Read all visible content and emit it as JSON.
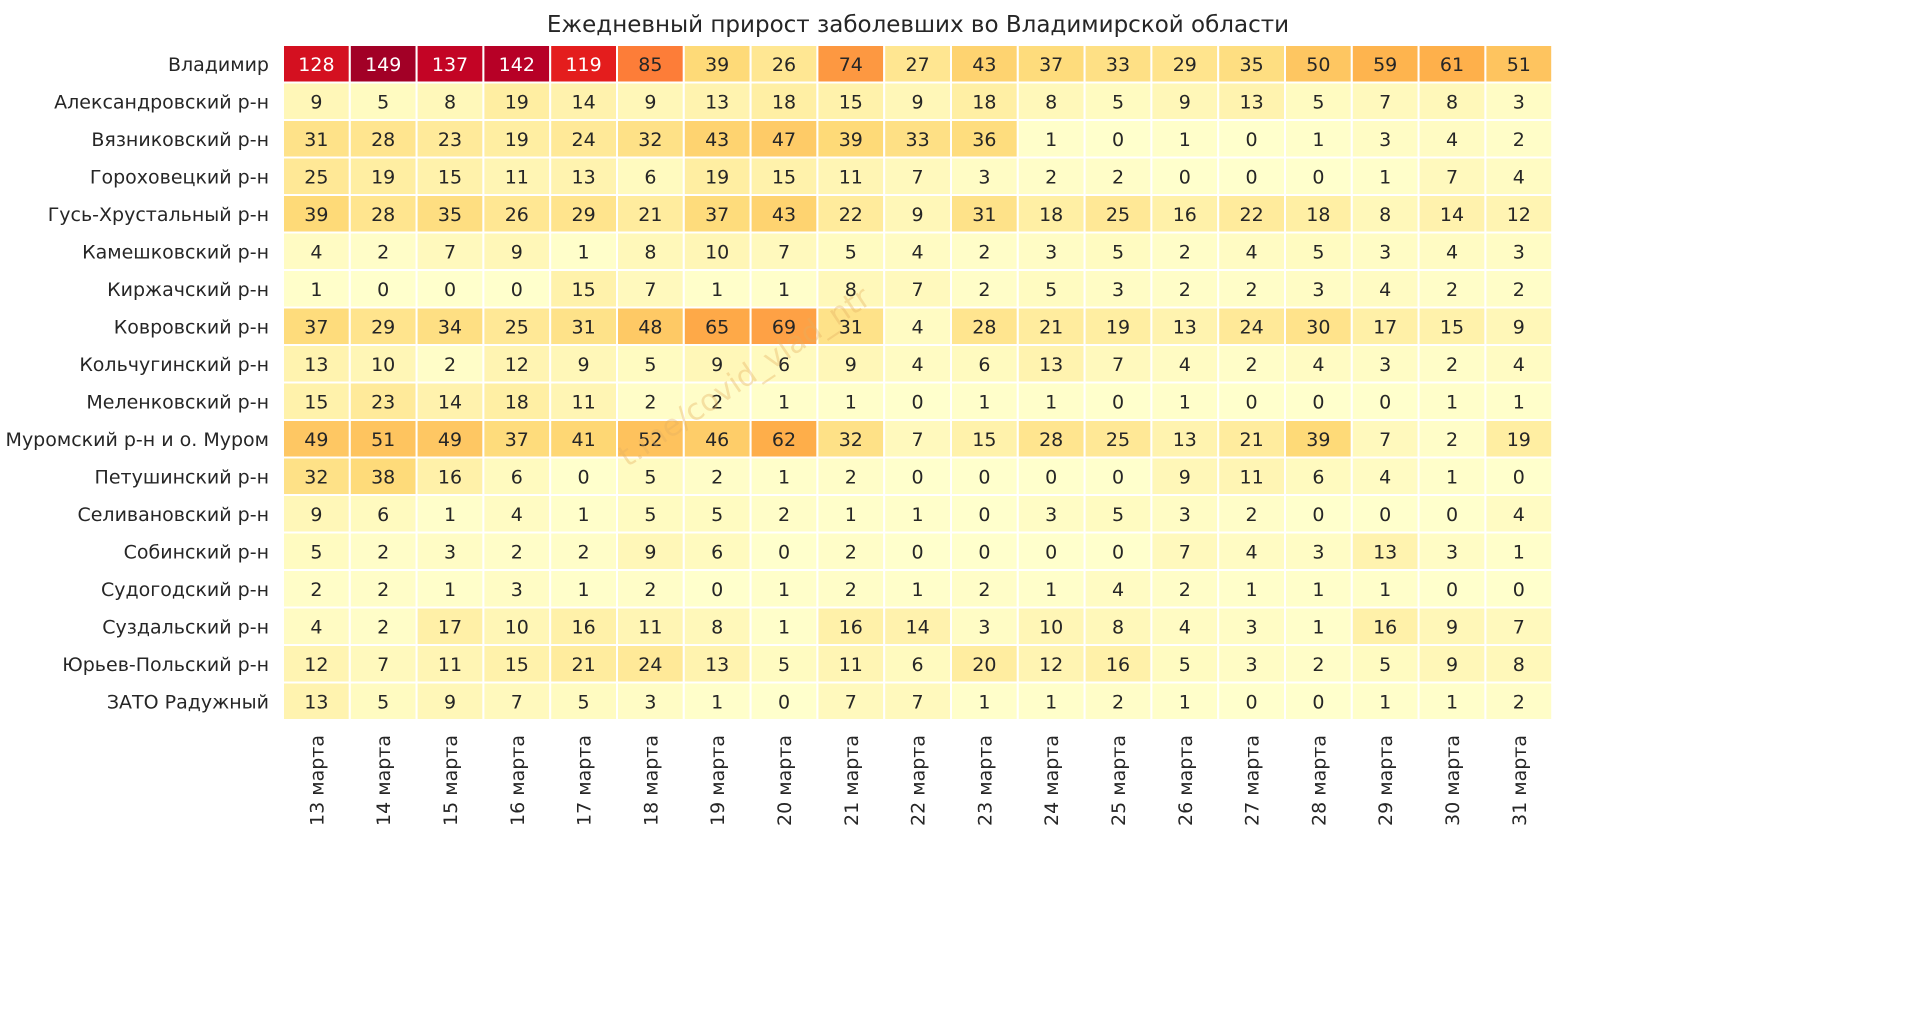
{
  "chart_data": {
    "type": "heatmap",
    "title": "Ежедневный прирост заболевших во Владимирской области",
    "watermark": "t.me/covid_vlad_ntr",
    "colormap": "YlOrRd",
    "rows": [
      "Владимир",
      "Александровский р-н",
      "Вязниковский р-н",
      "Гороховецкий р-н",
      "Гусь-Хрустальный р-н",
      "Камешковский р-н",
      "Киржачский р-н",
      "Ковровский р-н",
      "Кольчугинский р-н",
      "Меленковский р-н",
      "Муромский р-н и о. Муром",
      "Петушинский р-н",
      "Селивановский р-н",
      "Собинский р-н",
      "Судогодский р-н",
      "Суздальский р-н",
      "Юрьев-Польский р-н",
      "ЗАТО Радужный"
    ],
    "columns": [
      "13 марта",
      "14 марта",
      "15 марта",
      "16 марта",
      "17 марта",
      "18 марта",
      "19 марта",
      "20 марта",
      "21 марта",
      "22 марта",
      "23 марта",
      "24 марта",
      "25 марта",
      "26 марта",
      "27 марта",
      "28 марта",
      "29 марта",
      "30 марта",
      "31 марта"
    ],
    "values": [
      [
        128,
        149,
        137,
        142,
        119,
        85,
        39,
        26,
        74,
        27,
        43,
        37,
        33,
        29,
        35,
        50,
        59,
        61,
        51
      ],
      [
        9,
        5,
        8,
        19,
        14,
        9,
        13,
        18,
        15,
        9,
        18,
        8,
        5,
        9,
        13,
        5,
        7,
        8,
        3
      ],
      [
        31,
        28,
        23,
        19,
        24,
        32,
        43,
        47,
        39,
        33,
        36,
        1,
        0,
        1,
        0,
        1,
        3,
        4,
        2
      ],
      [
        25,
        19,
        15,
        11,
        13,
        6,
        19,
        15,
        11,
        7,
        3,
        2,
        2,
        0,
        0,
        0,
        1,
        7,
        4
      ],
      [
        39,
        28,
        35,
        26,
        29,
        21,
        37,
        43,
        22,
        9,
        31,
        18,
        25,
        16,
        22,
        18,
        8,
        14,
        12
      ],
      [
        4,
        2,
        7,
        9,
        1,
        8,
        10,
        7,
        5,
        4,
        2,
        3,
        5,
        2,
        4,
        5,
        3,
        4,
        3
      ],
      [
        1,
        0,
        0,
        0,
        15,
        7,
        1,
        1,
        8,
        7,
        2,
        5,
        3,
        2,
        2,
        3,
        4,
        2,
        2
      ],
      [
        37,
        29,
        34,
        25,
        31,
        48,
        65,
        69,
        31,
        4,
        28,
        21,
        19,
        13,
        24,
        30,
        17,
        15,
        9
      ],
      [
        13,
        10,
        2,
        12,
        9,
        5,
        9,
        6,
        9,
        4,
        6,
        13,
        7,
        4,
        2,
        4,
        3,
        2,
        4
      ],
      [
        15,
        23,
        14,
        18,
        11,
        2,
        2,
        1,
        1,
        0,
        1,
        1,
        0,
        1,
        0,
        0,
        0,
        1,
        1
      ],
      [
        49,
        51,
        49,
        37,
        41,
        52,
        46,
        62,
        32,
        7,
        15,
        28,
        25,
        13,
        21,
        39,
        7,
        2,
        19
      ],
      [
        32,
        38,
        16,
        6,
        0,
        5,
        2,
        1,
        2,
        0,
        0,
        0,
        0,
        9,
        11,
        6,
        4,
        1,
        0
      ],
      [
        9,
        6,
        1,
        4,
        1,
        5,
        5,
        2,
        1,
        1,
        0,
        3,
        5,
        3,
        2,
        0,
        0,
        0,
        4
      ],
      [
        5,
        2,
        3,
        2,
        2,
        9,
        6,
        0,
        2,
        0,
        0,
        0,
        0,
        7,
        4,
        3,
        13,
        3,
        1
      ],
      [
        2,
        2,
        1,
        3,
        1,
        2,
        0,
        1,
        2,
        1,
        2,
        1,
        4,
        2,
        1,
        1,
        1,
        0,
        0
      ],
      [
        4,
        2,
        17,
        10,
        16,
        11,
        8,
        1,
        16,
        14,
        3,
        10,
        8,
        4,
        3,
        1,
        16,
        9,
        7
      ],
      [
        12,
        7,
        11,
        15,
        21,
        24,
        13,
        5,
        11,
        6,
        20,
        12,
        16,
        5,
        3,
        2,
        5,
        9,
        8
      ],
      [
        13,
        5,
        9,
        7,
        5,
        3,
        1,
        0,
        7,
        7,
        1,
        1,
        2,
        1,
        0,
        0,
        1,
        1,
        2
      ]
    ]
  }
}
